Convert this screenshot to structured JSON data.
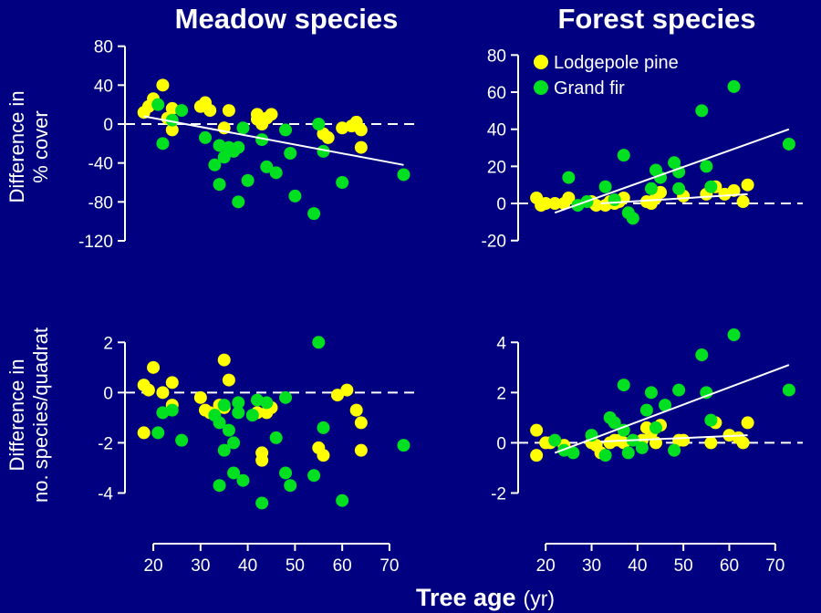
{
  "figure": {
    "col_titles": [
      "Meadow species",
      "Forest species"
    ],
    "ylabel_cover": [
      "Difference in",
      "% cover"
    ],
    "ylabel_species": [
      "Difference in",
      "no. species/quadrat"
    ],
    "xlabel": "Tree age",
    "xlabel_unit": "(yr)",
    "legend": [
      "Lodgepole pine",
      "Grand fir"
    ]
  },
  "colors": {
    "background": "#000080",
    "pine": "#ffff00",
    "fir": "#00e020",
    "axis": "#ffffff"
  },
  "chart_data": [
    {
      "type": "scatter",
      "title": "Meadow species",
      "ylabel": "Difference in % cover",
      "xlim": [
        14,
        76
      ],
      "ylim": [
        -135,
        90
      ],
      "xticks": [],
      "yticks": [
        80,
        40,
        0,
        -40,
        -80,
        -120
      ],
      "hline": 0,
      "series": [
        {
          "name": "Lodgepole pine",
          "points": [
            [
              18,
              12
            ],
            [
              19,
              18
            ],
            [
              20,
              26
            ],
            [
              22,
              40
            ],
            [
              23,
              6
            ],
            [
              24,
              -6
            ],
            [
              24,
              16
            ],
            [
              30,
              18
            ],
            [
              31,
              22
            ],
            [
              32,
              14
            ],
            [
              35,
              -4
            ],
            [
              36,
              14
            ],
            [
              42,
              5
            ],
            [
              42,
              10
            ],
            [
              43,
              0
            ],
            [
              44,
              6
            ],
            [
              45,
              10
            ],
            [
              56,
              -10
            ],
            [
              57,
              -14
            ],
            [
              60,
              -4
            ],
            [
              62,
              -2
            ],
            [
              63,
              2
            ],
            [
              64,
              -24
            ],
            [
              64,
              -6
            ]
          ]
        },
        {
          "name": "Grand fir",
          "points": [
            [
              21,
              20
            ],
            [
              22,
              -20
            ],
            [
              24,
              4
            ],
            [
              26,
              14
            ],
            [
              31,
              -14
            ],
            [
              33,
              -42
            ],
            [
              34,
              -22
            ],
            [
              34,
              -62
            ],
            [
              35,
              -34
            ],
            [
              36,
              -24
            ],
            [
              37,
              -28
            ],
            [
              38,
              -80
            ],
            [
              38,
              -24
            ],
            [
              39,
              -4
            ],
            [
              40,
              -58
            ],
            [
              43,
              -16
            ],
            [
              44,
              -44
            ],
            [
              46,
              -50
            ],
            [
              48,
              -6
            ],
            [
              49,
              -30
            ],
            [
              50,
              -74
            ],
            [
              54,
              -92
            ],
            [
              55,
              0
            ],
            [
              56,
              -28
            ],
            [
              60,
              -60
            ],
            [
              73,
              -52
            ]
          ]
        }
      ],
      "fits": [
        {
          "x": [
            18,
            73
          ],
          "y": [
            8,
            -42
          ]
        }
      ]
    },
    {
      "type": "scatter",
      "title": "Forest species",
      "ylabel": "Difference in % cover",
      "xlim": [
        14,
        76
      ],
      "ylim": [
        -28,
        90
      ],
      "xticks": [],
      "yticks": [
        80,
        60,
        40,
        20,
        0,
        -20
      ],
      "hline": 0,
      "legend": [
        "Lodgepole pine",
        "Grand fir"
      ],
      "series": [
        {
          "name": "Lodgepole pine",
          "points": [
            [
              18,
              3
            ],
            [
              19,
              -1
            ],
            [
              20,
              0
            ],
            [
              22,
              0
            ],
            [
              24,
              0
            ],
            [
              25,
              3
            ],
            [
              30,
              1
            ],
            [
              31,
              -1
            ],
            [
              33,
              -1
            ],
            [
              34,
              1
            ],
            [
              35,
              0
            ],
            [
              36,
              1
            ],
            [
              37,
              3
            ],
            [
              42,
              1
            ],
            [
              43,
              0
            ],
            [
              44,
              3
            ],
            [
              45,
              6
            ],
            [
              50,
              4
            ],
            [
              55,
              5
            ],
            [
              57,
              9
            ],
            [
              59,
              5
            ],
            [
              61,
              7
            ],
            [
              63,
              1
            ],
            [
              64,
              10
            ]
          ]
        },
        {
          "name": "Grand fir",
          "points": [
            [
              25,
              14
            ],
            [
              27,
              -1
            ],
            [
              29,
              1
            ],
            [
              33,
              9
            ],
            [
              35,
              2
            ],
            [
              37,
              26
            ],
            [
              38,
              -5
            ],
            [
              39,
              -8
            ],
            [
              43,
              8
            ],
            [
              44,
              18
            ],
            [
              45,
              14
            ],
            [
              48,
              22
            ],
            [
              49,
              17
            ],
            [
              49,
              8
            ],
            [
              54,
              50
            ],
            [
              55,
              20
            ],
            [
              56,
              9
            ],
            [
              61,
              63
            ],
            [
              73,
              32
            ]
          ]
        }
      ],
      "fits": [
        {
          "x": [
            22,
            73
          ],
          "y": [
            -5,
            40
          ]
        },
        {
          "x": [
            32,
            64
          ],
          "y": [
            0,
            5
          ]
        }
      ]
    },
    {
      "type": "scatter",
      "title": "",
      "ylabel": "Difference in no. species/quadrat",
      "xlim": [
        14,
        76
      ],
      "ylim": [
        -5.0,
        3.5
      ],
      "xticks": [
        20,
        30,
        40,
        50,
        60,
        70
      ],
      "yticks": [
        2,
        0,
        -2,
        -4
      ],
      "hline": 0,
      "series": [
        {
          "name": "Lodgepole pine",
          "points": [
            [
              18,
              0.3
            ],
            [
              18,
              -1.6
            ],
            [
              19,
              0.1
            ],
            [
              20,
              1.0
            ],
            [
              22,
              0.0
            ],
            [
              24,
              -0.5
            ],
            [
              24,
              0.4
            ],
            [
              30,
              -0.2
            ],
            [
              31,
              -0.7
            ],
            [
              32,
              -0.8
            ],
            [
              34,
              -0.5
            ],
            [
              35,
              1.3
            ],
            [
              36,
              0.5
            ],
            [
              35,
              -0.6
            ],
            [
              42,
              -0.8
            ],
            [
              43,
              -2.4
            ],
            [
              43,
              -2.7
            ],
            [
              44,
              -0.8
            ],
            [
              45,
              -0.6
            ],
            [
              55,
              -2.2
            ],
            [
              56,
              -2.5
            ],
            [
              59,
              -0.1
            ],
            [
              61,
              0.1
            ],
            [
              63,
              -0.7
            ],
            [
              64,
              -1.2
            ],
            [
              64,
              -2.3
            ]
          ]
        },
        {
          "name": "Grand fir",
          "points": [
            [
              21,
              -1.6
            ],
            [
              22,
              -0.8
            ],
            [
              24,
              -0.7
            ],
            [
              26,
              -1.9
            ],
            [
              33,
              -0.9
            ],
            [
              34,
              -1.2
            ],
            [
              34,
              -3.7
            ],
            [
              35,
              -2.3
            ],
            [
              35,
              -0.5
            ],
            [
              36,
              -1.5
            ],
            [
              37,
              -2.0
            ],
            [
              37,
              -3.2
            ],
            [
              38,
              -0.4
            ],
            [
              38,
              -0.8
            ],
            [
              39,
              -3.5
            ],
            [
              41,
              -0.9
            ],
            [
              42,
              -0.3
            ],
            [
              43,
              -4.4
            ],
            [
              44,
              -0.4
            ],
            [
              46,
              -1.8
            ],
            [
              48,
              -0.2
            ],
            [
              48,
              -3.2
            ],
            [
              49,
              -3.7
            ],
            [
              54,
              -3.3
            ],
            [
              55,
              2.0
            ],
            [
              56,
              -1.4
            ],
            [
              60,
              -4.3
            ],
            [
              73,
              -2.1
            ]
          ]
        }
      ]
    },
    {
      "type": "scatter",
      "title": "",
      "ylabel": "Difference in no. species/quadrat",
      "xlim": [
        14,
        76
      ],
      "ylim": [
        -3.0,
        5.5
      ],
      "xticks": [
        20,
        30,
        40,
        50,
        60,
        70
      ],
      "yticks": [
        4,
        2,
        0,
        -2
      ],
      "hline": 0,
      "series": [
        {
          "name": "Lodgepole pine",
          "points": [
            [
              18,
              0.5
            ],
            [
              18,
              -0.5
            ],
            [
              20,
              0.0
            ],
            [
              21,
              0.0
            ],
            [
              24,
              -0.1
            ],
            [
              30,
              0.0
            ],
            [
              31,
              -0.1
            ],
            [
              32,
              -0.4
            ],
            [
              34,
              0.0
            ],
            [
              35,
              0.1
            ],
            [
              36,
              0.1
            ],
            [
              37,
              0.0
            ],
            [
              41,
              0.1
            ],
            [
              42,
              0.6
            ],
            [
              43,
              0.4
            ],
            [
              44,
              0.0
            ],
            [
              45,
              0.7
            ],
            [
              49,
              0.1
            ],
            [
              50,
              0.1
            ],
            [
              56,
              0.0
            ],
            [
              57,
              0.8
            ],
            [
              60,
              0.3
            ],
            [
              62,
              0.2
            ],
            [
              63,
              0.0
            ],
            [
              64,
              0.8
            ]
          ]
        },
        {
          "name": "Grand fir",
          "points": [
            [
              22,
              0.1
            ],
            [
              24,
              -0.3
            ],
            [
              26,
              -0.4
            ],
            [
              30,
              0.3
            ],
            [
              33,
              -0.5
            ],
            [
              34,
              1.0
            ],
            [
              35,
              0.8
            ],
            [
              37,
              2.3
            ],
            [
              37,
              0.5
            ],
            [
              38,
              -0.4
            ],
            [
              39,
              0.1
            ],
            [
              41,
              -0.2
            ],
            [
              42,
              1.3
            ],
            [
              43,
              2.0
            ],
            [
              44,
              0.6
            ],
            [
              46,
              1.5
            ],
            [
              48,
              -0.3
            ],
            [
              49,
              2.1
            ],
            [
              54,
              3.5
            ],
            [
              55,
              2.0
            ],
            [
              56,
              0.9
            ],
            [
              61,
              4.3
            ],
            [
              73,
              2.1
            ]
          ]
        }
      ],
      "fits": [
        {
          "x": [
            22,
            73
          ],
          "y": [
            -0.4,
            3.1
          ]
        },
        {
          "x": [
            32,
            64
          ],
          "y": [
            0.05,
            0.3
          ]
        }
      ]
    }
  ]
}
